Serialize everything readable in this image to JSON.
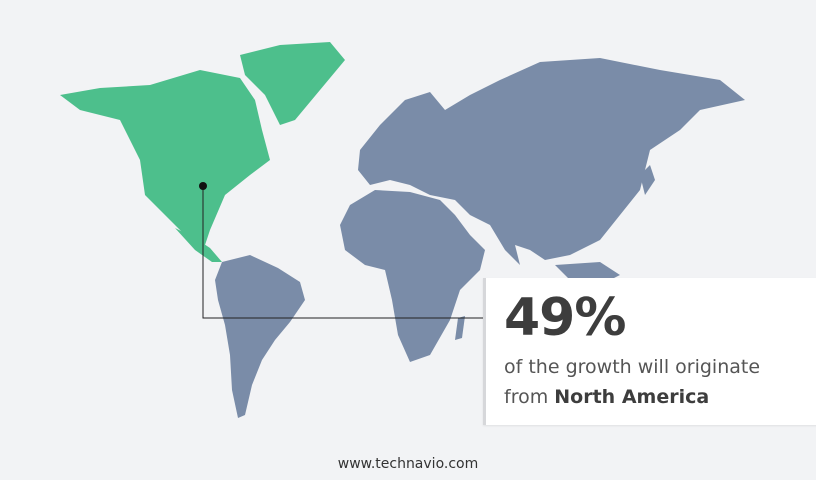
{
  "callout": {
    "percentage": "49%",
    "line1": "of the growth will originate",
    "line2_prefix": "from ",
    "region": "North America"
  },
  "footer": {
    "website": "www.technavio.com"
  },
  "map": {
    "highlighted_region": "North America",
    "highlight_color": "#4dbf8c",
    "other_color": "#7a8ca8",
    "background_color": "#f2f3f5"
  }
}
